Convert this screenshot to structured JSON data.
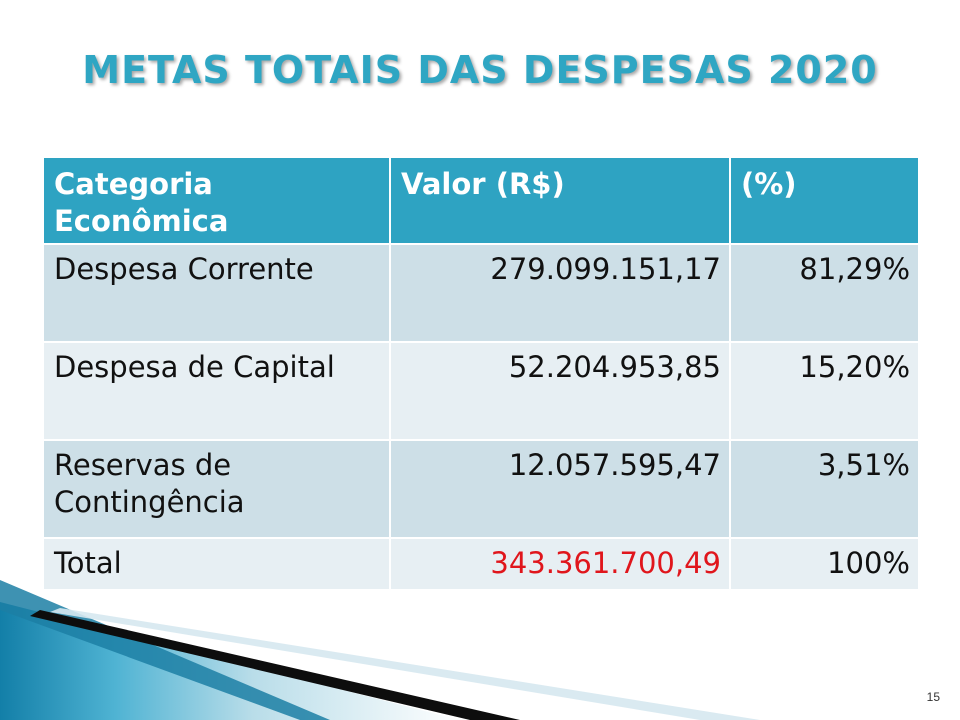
{
  "title": "METAS TOTAIS DAS DESPESAS 2020",
  "table": {
    "headers": [
      "Categoria Econômica",
      "Valor (R$)",
      "(%)"
    ],
    "rows": [
      {
        "categoria": "Despesa Corrente",
        "valor": "279.099.151,17",
        "percent": "81,29%"
      },
      {
        "categoria": "Despesa de Capital",
        "valor": "52.204.953,85",
        "percent": "15,20%"
      },
      {
        "categoria": "Reservas de Contingência",
        "valor": "12.057.595,47",
        "percent": "3,51%"
      },
      {
        "categoria": "Total",
        "valor": "343.361.700,49",
        "percent": "100%"
      }
    ]
  },
  "page_number": "15",
  "colors": {
    "title": "#2fa6c3",
    "header_bg": "#2ea3c2",
    "row_dark": "#cddfe7",
    "row_light": "#e7eff3",
    "total_value": "#e0161c"
  }
}
